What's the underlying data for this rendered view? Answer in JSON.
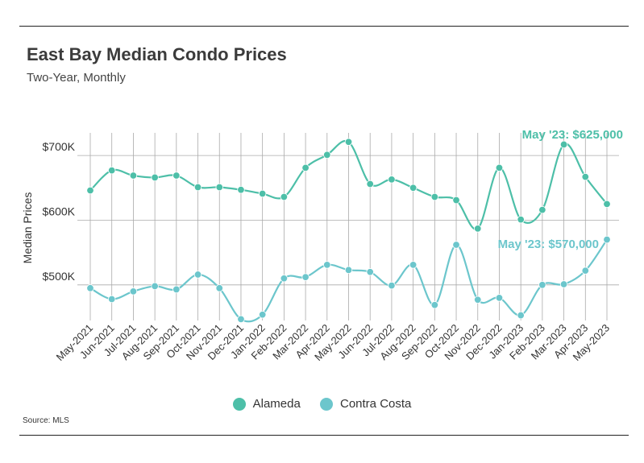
{
  "header": {
    "title": "East Bay Median Condo Prices",
    "subtitle": "Two-Year, Monthly"
  },
  "footer": {
    "source": "Source:  MLS"
  },
  "colors": {
    "alameda": "#4dbfa8",
    "contra_costa": "#6cc6cc",
    "grid": "#aaaaaa",
    "text": "#333333"
  },
  "chart_data": {
    "type": "line",
    "title": "East Bay Median Condo Prices",
    "subtitle": "Two-Year, Monthly",
    "xlabel": "",
    "ylabel": "Median Prices",
    "ylim": [
      445000,
      735000
    ],
    "yticks": [
      500000,
      600000,
      700000
    ],
    "ytick_labels": [
      "$500K",
      "$600K",
      "$700K"
    ],
    "grid": true,
    "legend_position": "bottom",
    "categories": [
      "May-2021",
      "Jun-2021",
      "Jul-2021",
      "Aug-2021",
      "Sep-2021",
      "Oct-2021",
      "Nov-2021",
      "Dec-2021",
      "Jan-2022",
      "Feb-2022",
      "Mar-2022",
      "Apr-2022",
      "May-2022",
      "Jun-2022",
      "Jul-2022",
      "Aug-2022",
      "Sep-2022",
      "Oct-2022",
      "Nov-2022",
      "Dec-2022",
      "Jan-2023",
      "Feb-2023",
      "Mar-2023",
      "Apr-2023",
      "May-2023"
    ],
    "series": [
      {
        "name": "Alameda",
        "color": "#4dbfa8",
        "values": [
          646000,
          677000,
          669000,
          666000,
          669000,
          651000,
          651000,
          647000,
          641000,
          636000,
          681000,
          701000,
          721000,
          656000,
          663000,
          650000,
          636000,
          631000,
          587000,
          681000,
          601000,
          616000,
          717000,
          667000,
          625000
        ],
        "annotation": "May '23: $625,000"
      },
      {
        "name": "Contra Costa",
        "color": "#6cc6cc",
        "values": [
          495000,
          478000,
          490000,
          498000,
          493000,
          516000,
          495000,
          447000,
          454000,
          510000,
          512000,
          531000,
          523000,
          520000,
          499000,
          531000,
          469000,
          562000,
          477000,
          480000,
          453000,
          500000,
          501000,
          522000,
          570000
        ],
        "annotation": "May '23: $570,000"
      }
    ]
  }
}
